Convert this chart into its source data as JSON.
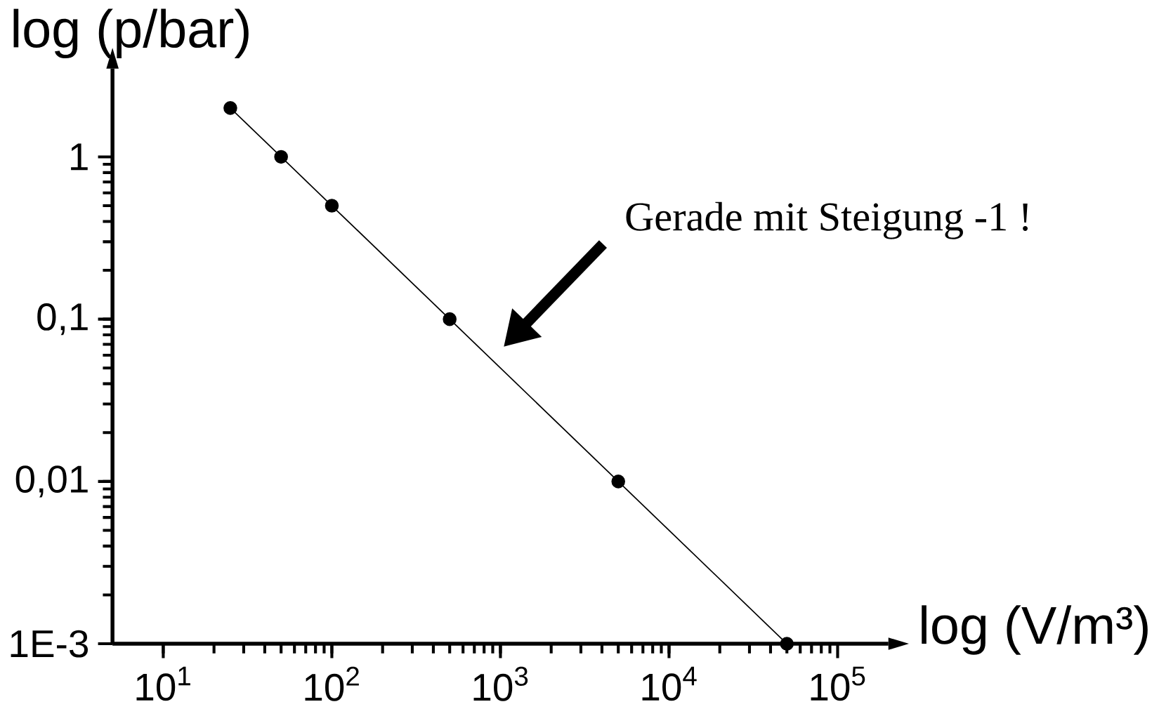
{
  "chart_data": {
    "type": "line",
    "xlabel": "log (V/m³)",
    "ylabel": "log (p/bar)",
    "x": [
      25,
      50,
      100,
      500,
      5000,
      50000
    ],
    "series": [
      {
        "color": "#000000",
        "values": [
          2,
          1,
          0.5,
          0.1,
          0.01,
          0.001
        ]
      }
    ],
    "log": "xy",
    "xlim": [
      5,
      200000
    ],
    "ylim": [
      0.001,
      3.5
    ],
    "xticks": [
      {
        "value": 10,
        "label": "10$^{1}$"
      },
      {
        "value": 100,
        "label": "10$^{2}$"
      },
      {
        "value": 1000,
        "label": "10$^{3}$"
      },
      {
        "value": 10000,
        "label": "10$^{4}$"
      },
      {
        "value": 100000,
        "label": "10$^{5}$"
      }
    ],
    "yticks": [
      {
        "value": 0.001,
        "label": "1E-3"
      },
      {
        "value": 0.01,
        "label": "0,01"
      },
      {
        "value": 0.1,
        "label": "0,1"
      },
      {
        "value": 1,
        "label": "1"
      }
    ],
    "annotations": [
      "Gerade mit Steigung -1 !"
    ],
    "marker": "circle",
    "line_style": "solid",
    "grid": false
  }
}
